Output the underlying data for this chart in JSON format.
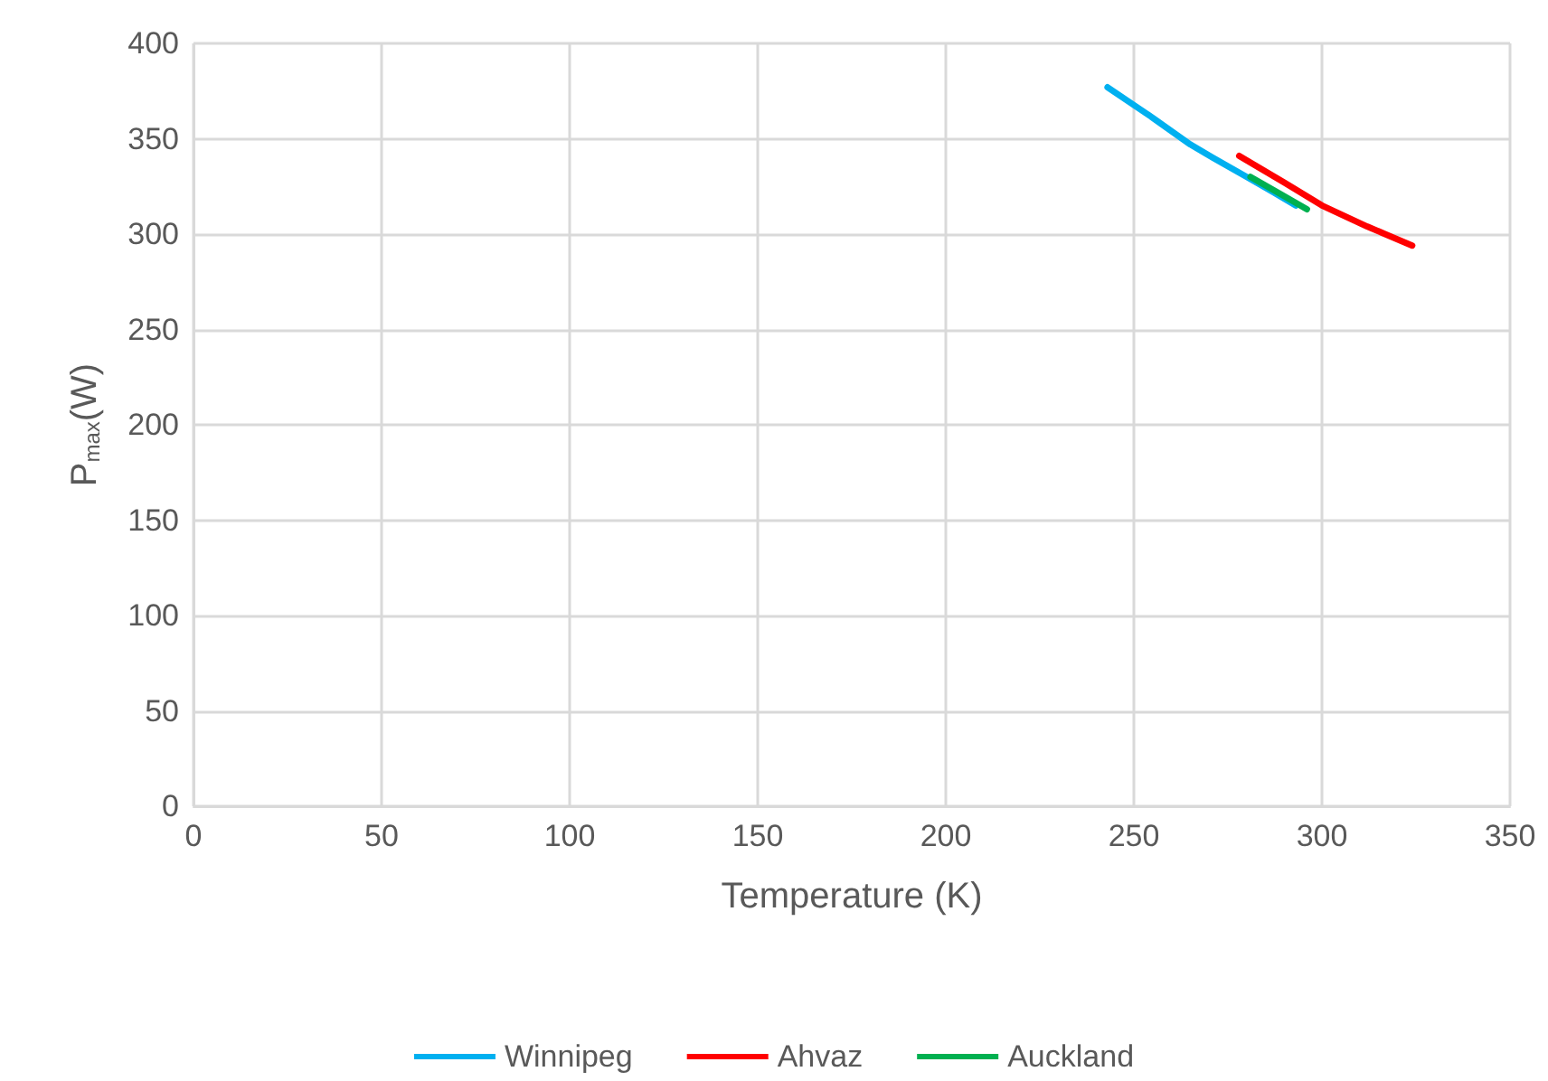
{
  "chart_data": {
    "type": "line",
    "xlabel": "Temperature (K)",
    "ylabel": "P$_{max}$(W)",
    "xlim": [
      0,
      350
    ],
    "xticks": [
      0,
      50,
      100,
      150,
      200,
      250,
      300,
      350
    ],
    "ylim": [
      0,
      400
    ],
    "yticks": [
      0,
      50,
      100,
      150,
      200,
      250,
      300,
      350,
      400
    ],
    "grid": true,
    "legend": "bottom",
    "marker": "none",
    "line_style": "solid",
    "series": [
      {
        "name": "Winnipeg",
        "color": "#00b0f0",
        "x": [
          243,
          255,
          265,
          271,
          280,
          287,
          293
        ],
        "values": [
          377,
          361,
          347,
          340,
          330,
          322,
          315
        ]
      },
      {
        "name": "Ahvaz",
        "color": "#ff0000",
        "x": [
          278,
          290,
          300,
          312,
          324
        ],
        "values": [
          341,
          327,
          315,
          304,
          294
        ]
      },
      {
        "name": "Auckland",
        "color": "#00b050",
        "x": [
          281,
          289,
          296
        ],
        "values": [
          330,
          321,
          313
        ]
      }
    ]
  }
}
